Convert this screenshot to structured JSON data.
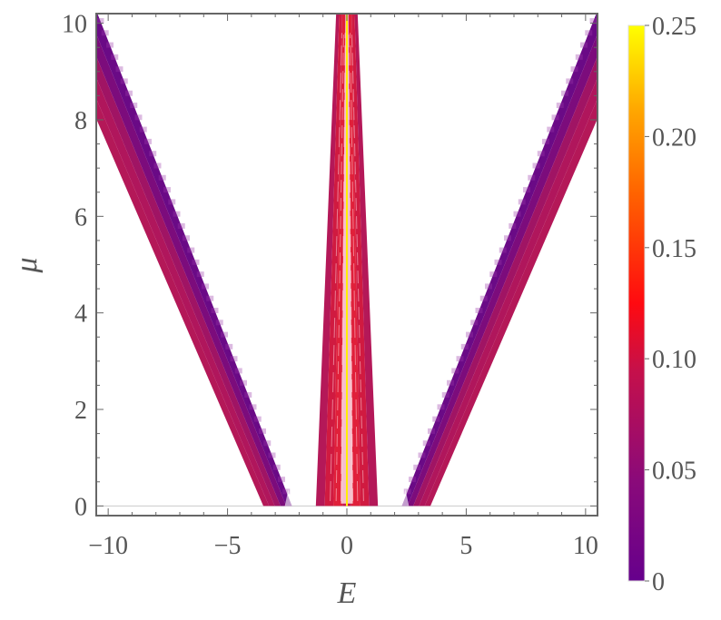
{
  "chart_data": {
    "type": "heatmap",
    "xlabel": "E",
    "ylabel": "μ",
    "xlim": [
      -10.5,
      10.5
    ],
    "ylim": [
      -0.2,
      10.2
    ],
    "x_ticks": [
      {
        "value": -10,
        "label": "−10"
      },
      {
        "value": -5,
        "label": "−5"
      },
      {
        "value": 0,
        "label": "0"
      },
      {
        "value": 5,
        "label": "5"
      },
      {
        "value": 10,
        "label": "10"
      }
    ],
    "y_ticks": [
      {
        "value": 0,
        "label": "0"
      },
      {
        "value": 2,
        "label": "2"
      },
      {
        "value": 4,
        "label": "4"
      },
      {
        "value": 6,
        "label": "6"
      },
      {
        "value": 8,
        "label": "8"
      },
      {
        "value": 10,
        "label": "10"
      }
    ],
    "colorbar": {
      "range": [
        0,
        0.25
      ],
      "ticks": [
        {
          "value": 0,
          "label": "0"
        },
        {
          "value": 0.05,
          "label": "0.05"
        },
        {
          "value": 0.1,
          "label": "0.10"
        },
        {
          "value": 0.15,
          "label": "0.15"
        },
        {
          "value": 0.2,
          "label": "0.20"
        },
        {
          "value": 0.25,
          "label": "0.25"
        }
      ],
      "colors": [
        "#6a0a8a",
        "#b0185e",
        "#ff0a0a",
        "#ff6a00",
        "#ffb800",
        "#ffff00"
      ]
    },
    "bands": [
      {
        "name": "outer-left",
        "edges": [
          [
            -3.5,
            0
          ],
          [
            -2.3,
            0
          ],
          [
            -10.5,
            10.0
          ],
          [
            -10.5,
            8.0
          ]
        ],
        "value": 0.05
      },
      {
        "name": "outer-right",
        "edges": [
          [
            2.3,
            0
          ],
          [
            3.5,
            0
          ],
          [
            10.5,
            8.0
          ],
          [
            10.5,
            10.0
          ]
        ],
        "value": 0.05
      },
      {
        "name": "central",
        "edges": [
          [
            -1.3,
            0
          ],
          [
            1.3,
            0
          ],
          [
            0.4,
            10.2
          ],
          [
            -0.4,
            10.2
          ]
        ],
        "value": 0.09
      }
    ],
    "center_line": {
      "x": 0,
      "value": 0.25
    },
    "grid": false
  }
}
